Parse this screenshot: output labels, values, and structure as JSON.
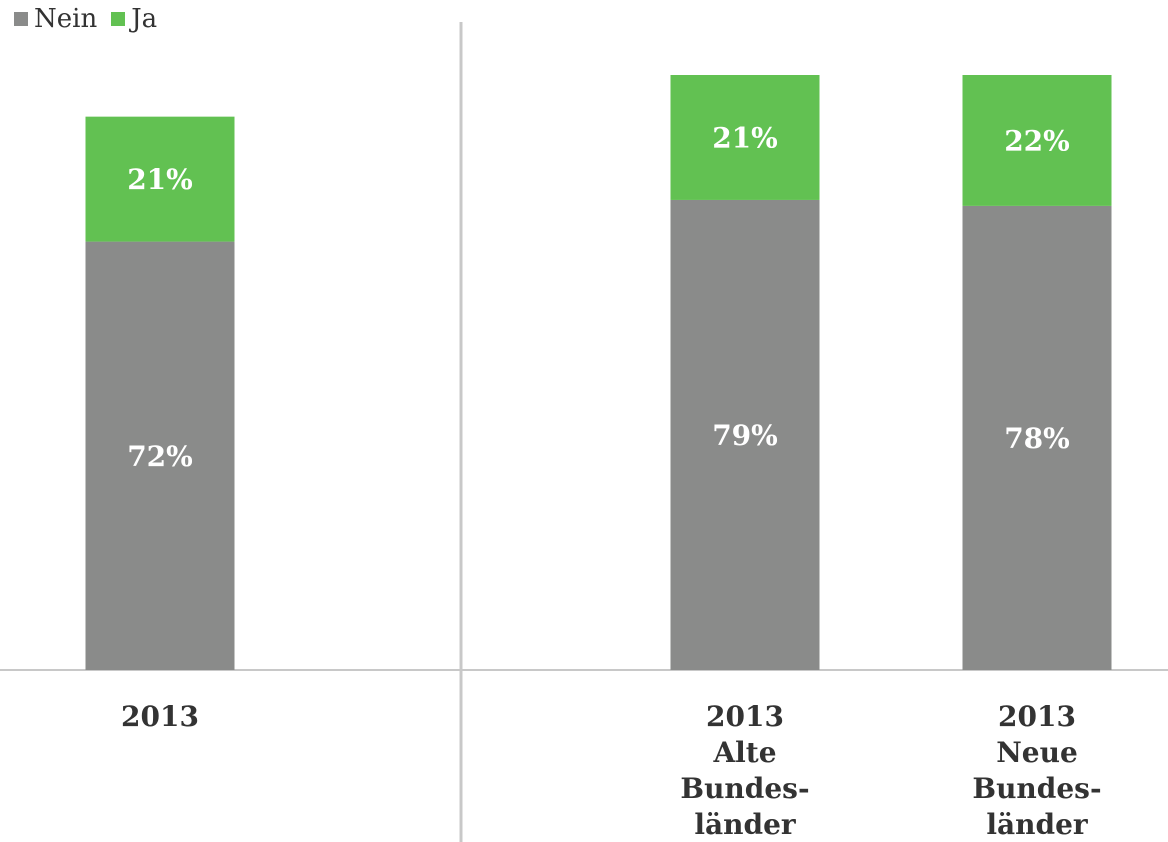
{
  "chart_data": {
    "type": "bar",
    "stacked": true,
    "legend": {
      "placement": "top-left",
      "items": [
        {
          "name": "Nein",
          "color": "#8a8b8a"
        },
        {
          "name": "Ja",
          "color": "#62c152"
        }
      ]
    },
    "panels": [
      {
        "categories": [
          [
            "2013"
          ]
        ],
        "series": [
          {
            "name": "Nein",
            "values": [
              72
            ],
            "labels": [
              "72%"
            ],
            "color": "#8a8b8a"
          },
          {
            "name": "Ja",
            "values": [
              21
            ],
            "labels": [
              "21%"
            ],
            "color": "#62c152"
          }
        ]
      },
      {
        "categories": [
          [
            "2013",
            "Alte",
            "Bundes-",
            "länder"
          ],
          [
            "2013",
            "Neue",
            "Bundes-",
            "länder"
          ]
        ],
        "series": [
          {
            "name": "Nein",
            "values": [
              79,
              78
            ],
            "labels": [
              "79%",
              "78%"
            ],
            "color": "#8a8b8a"
          },
          {
            "name": "Ja",
            "values": [
              21,
              22
            ],
            "labels": [
              "21%",
              "22%"
            ],
            "color": "#62c152"
          }
        ]
      }
    ],
    "ylim": [
      0,
      100
    ],
    "grid": false
  }
}
